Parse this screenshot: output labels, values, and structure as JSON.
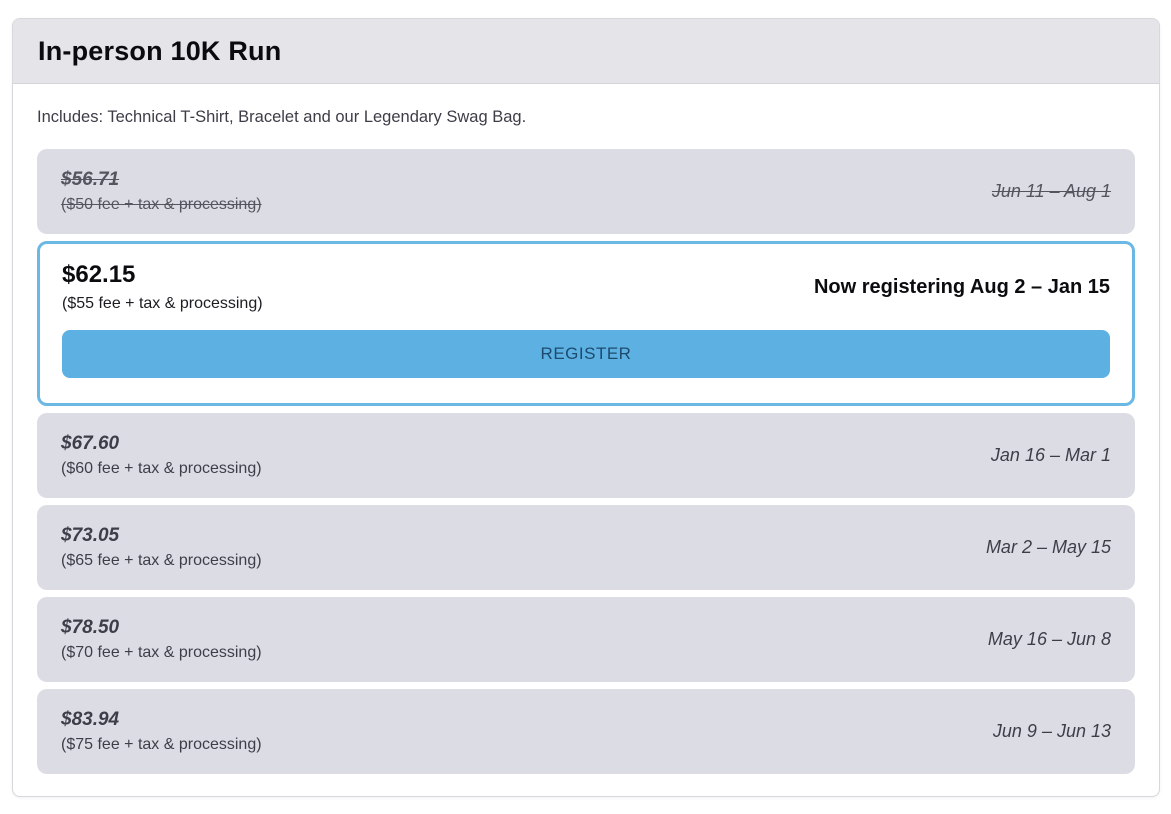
{
  "card": {
    "title": "In-person 10K Run",
    "description": "Includes: Technical T-Shirt, Bracelet and our Legendary Swag Bag."
  },
  "colors": {
    "header_bg": "#e4e4e9",
    "row_bg": "#dcdde4",
    "active_border": "#6cb8e5",
    "button_bg": "#5cb1e2",
    "button_text": "#1d4b6e",
    "muted_text": "#3e3e4a"
  },
  "tiers": [
    {
      "price": "$56.71",
      "detail": "($50 fee + tax & processing)",
      "dates": "Jun 11 – Aug 1",
      "status": "past"
    },
    {
      "price": "$62.15",
      "detail": "($55 fee + tax & processing)",
      "dates": "Now registering Aug 2 – Jan 15",
      "status": "active",
      "button_label": "REGISTER"
    },
    {
      "price": "$67.60",
      "detail": "($60 fee + tax & processing)",
      "dates": "Jan 16 – Mar 1",
      "status": "future"
    },
    {
      "price": "$73.05",
      "detail": "($65 fee + tax & processing)",
      "dates": "Mar 2 – May 15",
      "status": "future"
    },
    {
      "price": "$78.50",
      "detail": "($70 fee + tax & processing)",
      "dates": "May 16 – Jun 8",
      "status": "future"
    },
    {
      "price": "$83.94",
      "detail": "($75 fee + tax & processing)",
      "dates": "Jun 9 – Jun 13",
      "status": "future"
    }
  ]
}
